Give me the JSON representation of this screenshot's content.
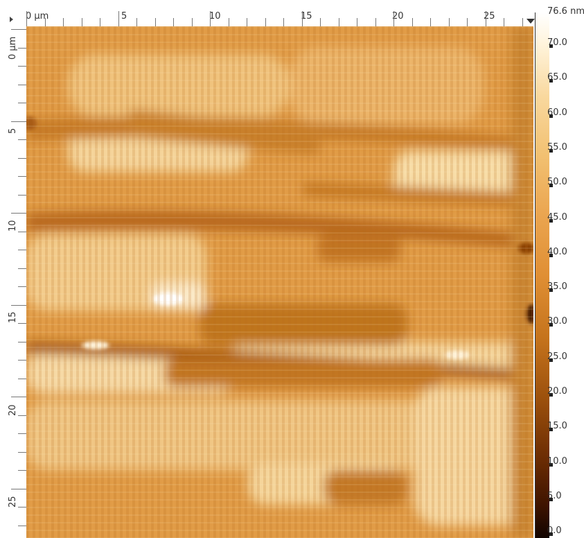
{
  "top_ruler": {
    "start_label": "0 μm",
    "labels": [
      "5",
      "10",
      "15",
      "20",
      "25"
    ]
  },
  "left_ruler": {
    "start_label": "0 μm",
    "labels": [
      "5",
      "10",
      "15",
      "20",
      "25"
    ]
  },
  "scale_bar": {
    "max_label": "76.6 nm",
    "labels": [
      "70.0",
      "65.0",
      "60.0",
      "55.0",
      "50.0",
      "45.0",
      "40.0",
      "35.0",
      "30.0",
      "25.0",
      "20.0",
      "15.0",
      "10.0",
      "5.0",
      "0.0"
    ]
  },
  "colors": {
    "base": "#d98f37",
    "light": "#f6d59a",
    "dark": "#a85c12",
    "highlight": "#ffffff"
  }
}
